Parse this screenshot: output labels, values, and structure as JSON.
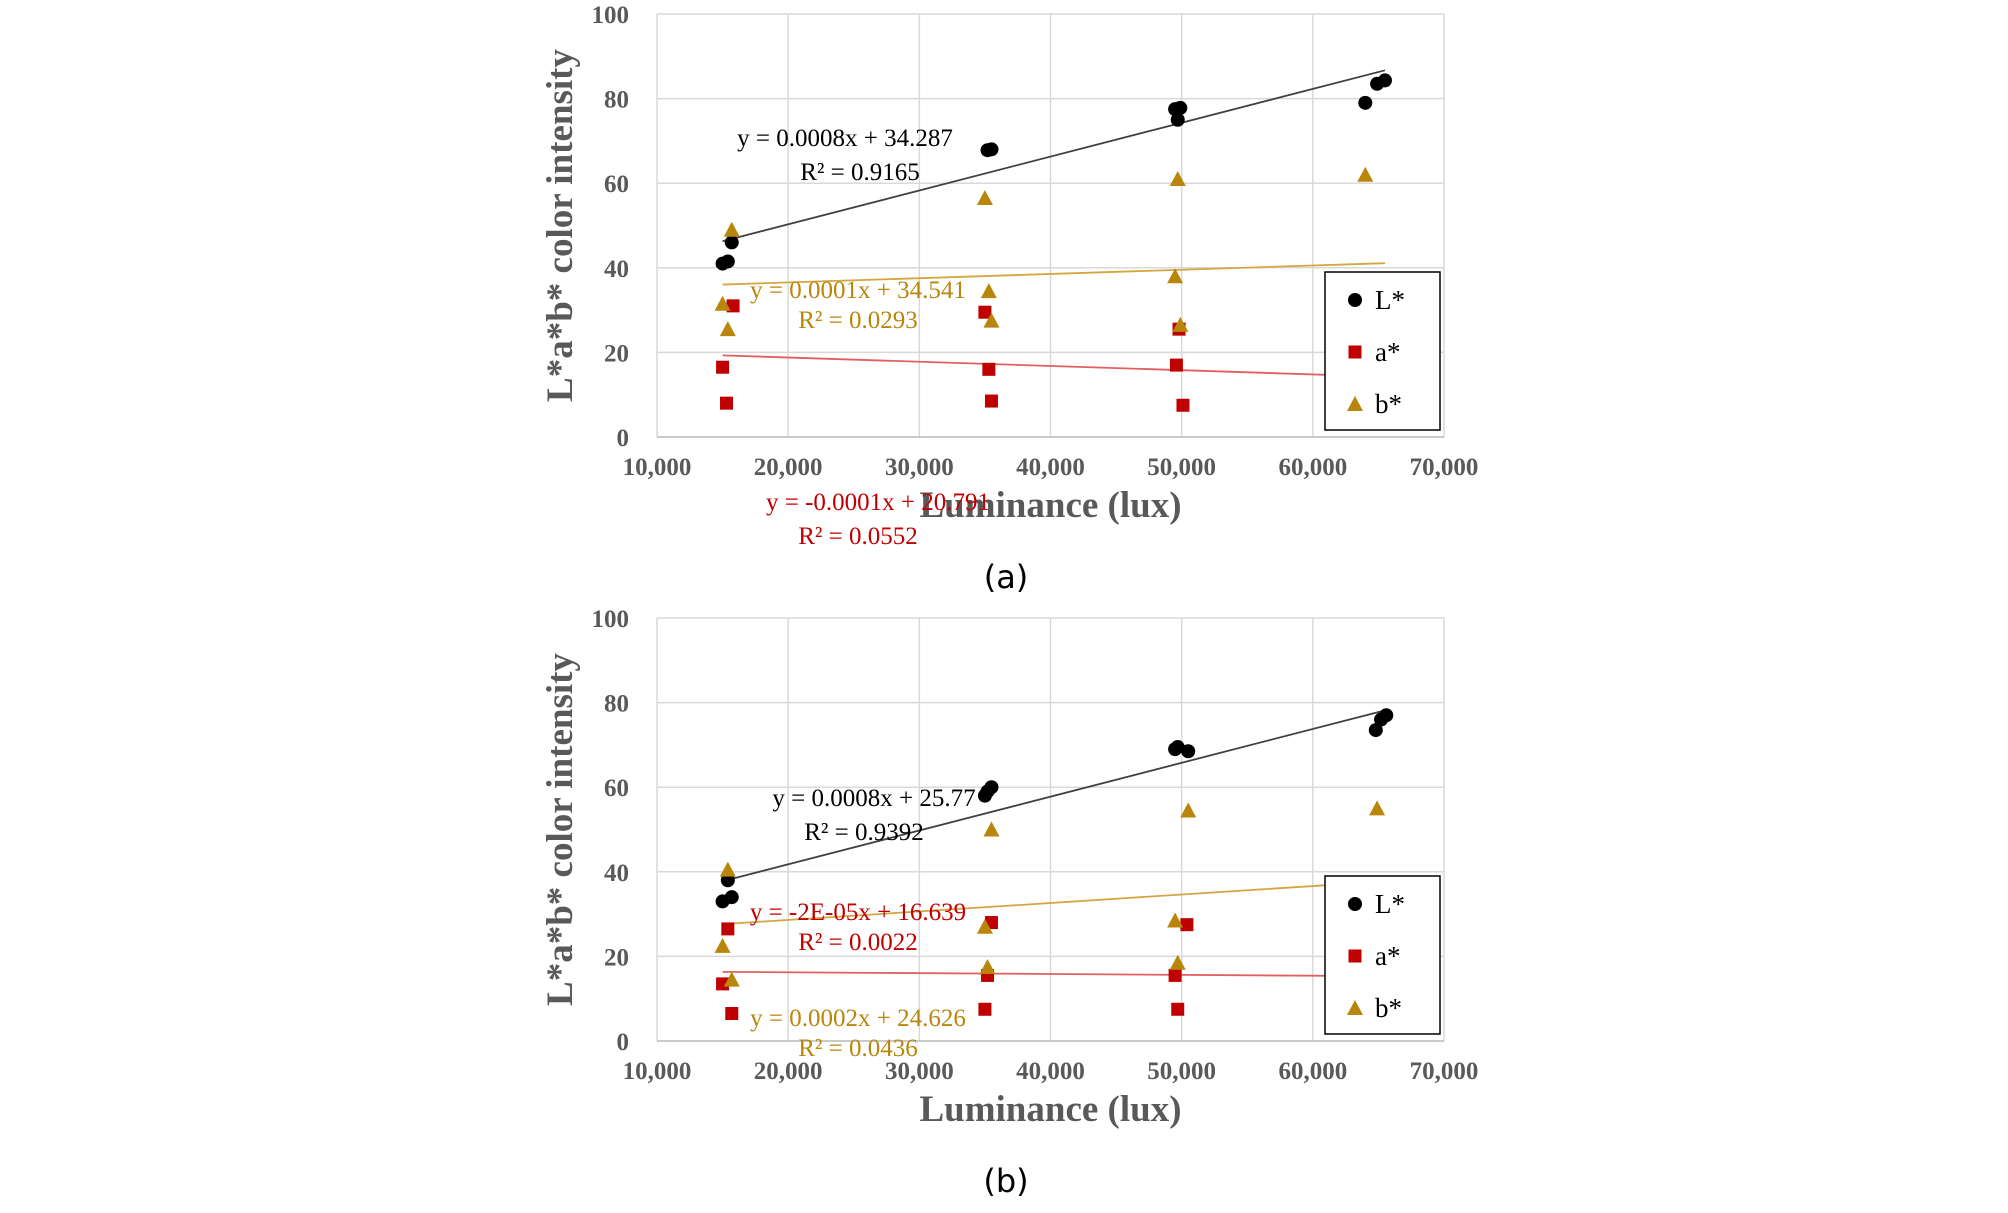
{
  "chart_data": [
    {
      "type": "scatter",
      "panel_label": "(a)",
      "xlabel": "Luminance (lux)",
      "ylabel": "L*a*b* color intensity",
      "xlim": [
        10000,
        70000
      ],
      "ylim": [
        0,
        100
      ],
      "x_ticks": [
        "10,000",
        "20,000",
        "30,000",
        "40,000",
        "50,000",
        "60,000",
        "70,000"
      ],
      "y_ticks": [
        "0",
        "20",
        "40",
        "60",
        "80",
        "100"
      ],
      "grid": true,
      "legend_position": "right",
      "series": [
        {
          "name": "L*",
          "marker": "circle",
          "color": "#000000",
          "points": [
            [
              15000,
              41
            ],
            [
              15400,
              41.5
            ],
            [
              15700,
              46
            ],
            [
              35200,
              67.8
            ],
            [
              35500,
              68
            ],
            [
              49500,
              77.5
            ],
            [
              49700,
              75
            ],
            [
              49900,
              77.8
            ],
            [
              64000,
              79
            ],
            [
              64900,
              83.5
            ],
            [
              65500,
              84.3
            ]
          ],
          "trendline": {
            "color": "#404040",
            "x_range": [
              15000,
              65500
            ],
            "slope": 0.0008,
            "intercept": 34.287,
            "equation": "y = 0.0008x + 34.287",
            "r2": "R² = 0.9165"
          }
        },
        {
          "name": "a*",
          "marker": "square",
          "color": "#c00000",
          "points": [
            [
              15000,
              16.5
            ],
            [
              15300,
              8
            ],
            [
              15800,
              31
            ],
            [
              35000,
              29.5
            ],
            [
              35300,
              16
            ],
            [
              35500,
              8.5
            ],
            [
              49600,
              17
            ],
            [
              49800,
              25.5
            ],
            [
              50100,
              7.5
            ]
          ],
          "trendline": {
            "color": "#e06060",
            "x_range": [
              15000,
              65500
            ],
            "slope": -0.0001,
            "intercept": 20.791,
            "equation": "y = -0.0001x + 20.791",
            "r2": "R² = 0.0552"
          }
        },
        {
          "name": "b*",
          "marker": "triangle",
          "color": "#b8860b",
          "points": [
            [
              15000,
              31.5
            ],
            [
              15400,
              25.5
            ],
            [
              15700,
              49
            ],
            [
              35000,
              56.5
            ],
            [
              35300,
              34.5
            ],
            [
              35500,
              27.5
            ],
            [
              49500,
              38
            ],
            [
              49700,
              61
            ],
            [
              49900,
              26.5
            ],
            [
              64000,
              62
            ]
          ],
          "trendline": {
            "color": "#d4a640",
            "x_range": [
              15000,
              65500
            ],
            "slope": 0.0001,
            "intercept": 34.541,
            "equation": "y = 0.0001x + 34.541",
            "r2": "R² = 0.0293"
          }
        }
      ]
    },
    {
      "type": "scatter",
      "panel_label": "(b)",
      "xlabel": "Luminance (lux)",
      "ylabel": "L*a*b* color intensity",
      "xlim": [
        10000,
        70000
      ],
      "ylim": [
        0,
        100
      ],
      "x_ticks": [
        "10,000",
        "20,000",
        "30,000",
        "40,000",
        "50,000",
        "60,000",
        "70,000"
      ],
      "y_ticks": [
        "0",
        "20",
        "40",
        "60",
        "80",
        "100"
      ],
      "grid": true,
      "legend_position": "right",
      "series": [
        {
          "name": "L*",
          "marker": "circle",
          "color": "#000000",
          "points": [
            [
              15000,
              33
            ],
            [
              15400,
              38
            ],
            [
              15700,
              34
            ],
            [
              35000,
              58
            ],
            [
              35200,
              59
            ],
            [
              35500,
              60
            ],
            [
              49500,
              69
            ],
            [
              49700,
              69.5
            ],
            [
              50500,
              68.5
            ],
            [
              64800,
              73.5
            ],
            [
              65200,
              76
            ],
            [
              65600,
              77
            ]
          ],
          "trendline": {
            "color": "#404040",
            "x_range": [
              15000,
              65500
            ],
            "slope": 0.0008,
            "intercept": 25.77,
            "equation": "y = 0.0008x + 25.77",
            "r2": "R² = 0.9392"
          }
        },
        {
          "name": "a*",
          "marker": "square",
          "color": "#c00000",
          "points": [
            [
              15000,
              13.5
            ],
            [
              15400,
              26.5
            ],
            [
              15700,
              6.5
            ],
            [
              35000,
              7.5
            ],
            [
              35200,
              15.5
            ],
            [
              35500,
              28
            ],
            [
              49500,
              15.5
            ],
            [
              49700,
              7.5
            ],
            [
              50400,
              27.5
            ]
          ],
          "trendline": {
            "color": "#e06060",
            "x_range": [
              15000,
              65500
            ],
            "slope": -2e-05,
            "intercept": 16.639,
            "equation": "y = -2E-05x + 16.639",
            "r2": "R² = 0.0022"
          }
        },
        {
          "name": "b*",
          "marker": "triangle",
          "color": "#b8860b",
          "points": [
            [
              15000,
              22.5
            ],
            [
              15400,
              40.5
            ],
            [
              15700,
              14.5
            ],
            [
              35000,
              27
            ],
            [
              35200,
              17.5
            ],
            [
              35500,
              50
            ],
            [
              49500,
              28.5
            ],
            [
              49700,
              18.5
            ],
            [
              50500,
              54.5
            ],
            [
              64900,
              55
            ]
          ],
          "trendline": {
            "color": "#d4a640",
            "x_range": [
              15000,
              65500
            ],
            "slope": 0.0002,
            "intercept": 24.626,
            "equation": "y = 0.0002x + 24.626",
            "r2": "R² = 0.0436"
          }
        }
      ]
    }
  ]
}
